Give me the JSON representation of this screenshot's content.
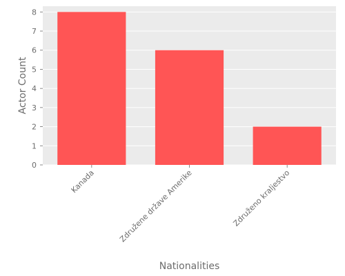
{
  "chart_data": {
    "type": "bar",
    "categories": [
      "Kanada",
      "Združene države Amerike",
      "Združeno kraljestvo"
    ],
    "values": [
      8,
      6,
      2
    ],
    "xlabel": "Nationalities",
    "ylabel": "Actor Count",
    "ylim": [
      0,
      8.3
    ],
    "yticks": [
      0,
      1,
      2,
      3,
      4,
      5,
      6,
      7,
      8
    ],
    "grid": true,
    "legend": "none",
    "colors": {
      "bar": "#ff5555",
      "plot_background": "#ebebeb",
      "grid": "#ffffff",
      "text": "#6b6b6b"
    }
  }
}
